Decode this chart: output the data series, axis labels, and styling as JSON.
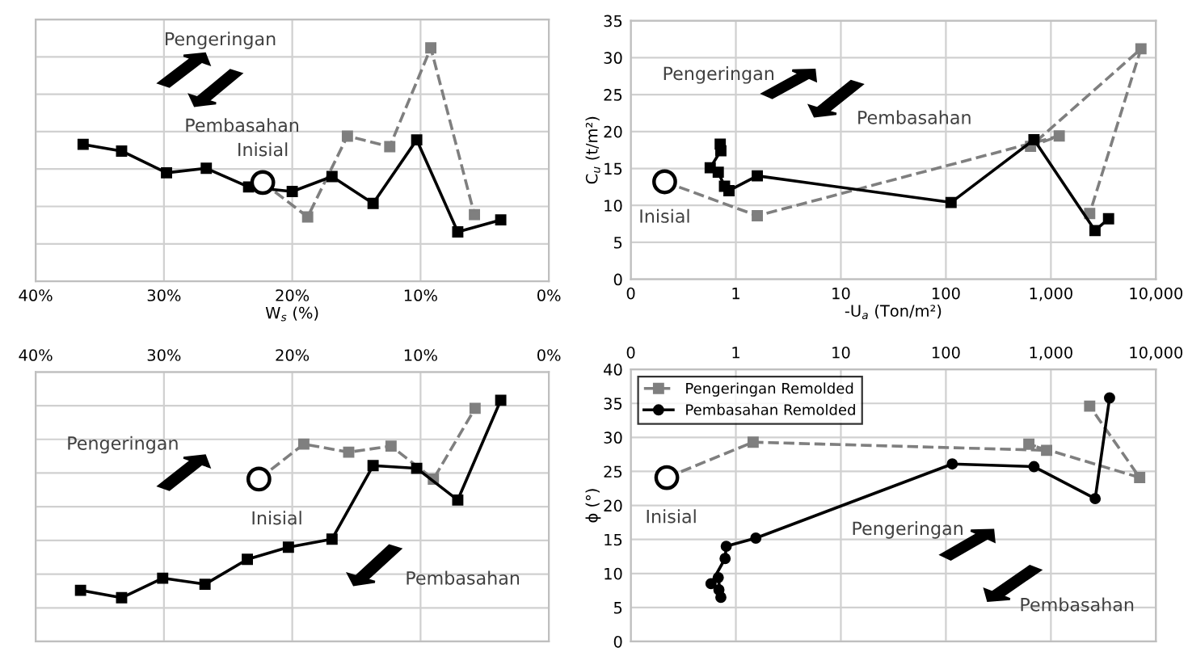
{
  "chart_data": [
    {
      "type": "line",
      "xlabel": "W$_{s}$ (%)",
      "xlim": [
        40,
        0
      ],
      "xticks": [
        {
          "value": 40,
          "label": "40%"
        },
        {
          "value": 30,
          "label": "30%"
        },
        {
          "value": 20,
          "label": "20%"
        },
        {
          "value": 10,
          "label": "10%"
        },
        {
          "value": 0,
          "label": "0%"
        }
      ],
      "ylim": [
        0,
        35
      ],
      "yticks": [
        0,
        5,
        10,
        15,
        20,
        25,
        30,
        35
      ],
      "tick_labels": "x",
      "grid": true,
      "legend": false,
      "series": [
        {
          "color": "#7f7f7f",
          "line_style": "dashed",
          "marker": "square",
          "x": [
            22.3,
            18.8,
            15.7,
            12.4,
            9.2,
            5.8
          ],
          "values": [
            13.2,
            8.6,
            19.4,
            18.0,
            31.2,
            8.9
          ]
        },
        {
          "color": "#000000",
          "line_style": "solid",
          "marker": "square",
          "x": [
            36.3,
            33.3,
            29.8,
            26.7,
            23.4,
            20.0,
            16.9,
            13.7,
            10.3,
            7.1,
            3.75
          ],
          "values": [
            18.3,
            17.4,
            14.5,
            15.1,
            12.6,
            12.0,
            14.0,
            10.4,
            18.9,
            6.6,
            8.2
          ]
        },
        {
          "type": "scatter",
          "color": "#000000",
          "marker": "circle",
          "x": [
            22.3
          ],
          "values": [
            13.2
          ]
        }
      ],
      "annotations": [
        "Pengeringan",
        "Pembasahan",
        {
          "text": "Inisial",
          "x": 22.3,
          "y": 13.2
        }
      ]
    },
    {
      "type": "line",
      "xlabel": "-U$_{a}$ (Ton/m²)",
      "ylabel": "C$_{u}$ (t/m²)",
      "log": "x",
      "xlim": [
        0.1,
        10000
      ],
      "xticks": [
        {
          "value": 0.1,
          "label": "0"
        },
        1,
        10,
        100,
        {
          "value": 1000,
          "label": "1,000"
        },
        {
          "value": 10000,
          "label": "10,000"
        }
      ],
      "ylim": [
        0,
        35
      ],
      "yticks": [
        0,
        5,
        10,
        15,
        20,
        25,
        30,
        35
      ],
      "grid": true,
      "legend": false,
      "series": [
        {
          "color": "#7f7f7f",
          "line_style": "dashed",
          "marker": "square",
          "x": [
            0.21,
            1.6,
            1200,
            640,
            7200,
            2340
          ],
          "values": [
            13.2,
            8.6,
            19.4,
            18.0,
            31.2,
            8.9
          ]
        },
        {
          "color": "#000000",
          "line_style": "solid",
          "marker": "square",
          "x": [
            0.71,
            0.72,
            0.57,
            0.68,
            0.78,
            0.86,
            1.6,
            112,
            690,
            2630,
            3540
          ],
          "values": [
            18.3,
            17.4,
            15.1,
            14.5,
            12.6,
            12.0,
            14.0,
            10.4,
            18.9,
            6.6,
            8.2
          ]
        },
        {
          "type": "scatter",
          "color": "#000000",
          "marker": "circle",
          "x": [
            0.21
          ],
          "values": [
            13.2
          ]
        }
      ],
      "annotations": [
        "Pengeringan",
        "Pembasahan",
        {
          "text": "Inisial",
          "x": 0.21,
          "y": 13.2
        }
      ]
    },
    {
      "type": "line",
      "xlim": [
        40,
        0
      ],
      "xticks": [
        {
          "value": 40,
          "label": "40%"
        },
        {
          "value": 30,
          "label": "30%"
        },
        {
          "value": 20,
          "label": "20%"
        },
        {
          "value": 10,
          "label": "10%"
        },
        {
          "value": 0,
          "label": "0%"
        }
      ],
      "ylim": [
        0,
        40
      ],
      "yticks": [
        0,
        5,
        10,
        15,
        20,
        25,
        30,
        35,
        40
      ],
      "tick_labels": "x",
      "grid": true,
      "legend": false,
      "series": [
        {
          "color": "#7f7f7f",
          "line_style": "dashed",
          "marker": "square",
          "x": [
            22.6,
            19.1,
            15.6,
            12.3,
            9.0,
            5.75
          ],
          "values": [
            24.1,
            29.3,
            28.1,
            29.0,
            24.1,
            34.6
          ]
        },
        {
          "color": "#000000",
          "line_style": "solid",
          "marker": "square",
          "x": [
            36.5,
            33.3,
            30.1,
            26.8,
            23.5,
            20.3,
            16.9,
            13.7,
            10.3,
            7.1,
            3.75
          ],
          "values": [
            7.6,
            6.5,
            9.4,
            8.5,
            12.2,
            14.0,
            15.2,
            26.1,
            25.7,
            21.0,
            35.8
          ]
        },
        {
          "type": "scatter",
          "color": "#000000",
          "marker": "circle",
          "x": [
            22.6
          ],
          "values": [
            24.1
          ]
        }
      ],
      "annotations": [
        "Pengeringan",
        "Pembasahan",
        {
          "text": "Inisial",
          "x": 22.6,
          "y": 24.1
        }
      ]
    },
    {
      "type": "line",
      "ylabel": "ϕ (°)",
      "log": "x",
      "xlim": [
        0.1,
        10000
      ],
      "xticks": [
        {
          "value": 0.1,
          "label": "0"
        },
        1,
        10,
        100,
        {
          "value": 1000,
          "label": "1,000"
        },
        {
          "value": 10000,
          "label": "10,000"
        }
      ],
      "ylim": [
        0,
        40
      ],
      "yticks": [
        0,
        5,
        10,
        15,
        20,
        25,
        30,
        35,
        40
      ],
      "grid": true,
      "legend": "top left",
      "series": [
        {
          "name": "Pengeringan Remolded",
          "color": "#7f7f7f",
          "line_style": "dashed",
          "marker": "square",
          "x": [
            0.22,
            1.46,
            910,
            617,
            7000,
            2340
          ],
          "values": [
            24.1,
            29.3,
            28.1,
            29.0,
            24.1,
            34.6
          ]
        },
        {
          "name": "Pembasahan Remolded",
          "color": "#000000",
          "line_style": "solid",
          "marker": "circle",
          "x": [
            0.69,
            0.72,
            0.68,
            0.58,
            0.79,
            0.81,
            1.55,
            115,
            690,
            2640,
            3620
          ],
          "values": [
            7.6,
            6.5,
            9.4,
            8.5,
            12.2,
            14.0,
            15.2,
            26.1,
            25.7,
            21.0,
            35.8
          ]
        },
        {
          "type": "scatter",
          "color": "#000000",
          "marker": "circle",
          "x": [
            0.22
          ],
          "values": [
            24.1
          ]
        }
      ],
      "annotations": [
        "Pengeringan",
        "Pembasahan",
        {
          "text": "Inisial",
          "x": 0.22,
          "y": 24.1
        }
      ]
    }
  ]
}
